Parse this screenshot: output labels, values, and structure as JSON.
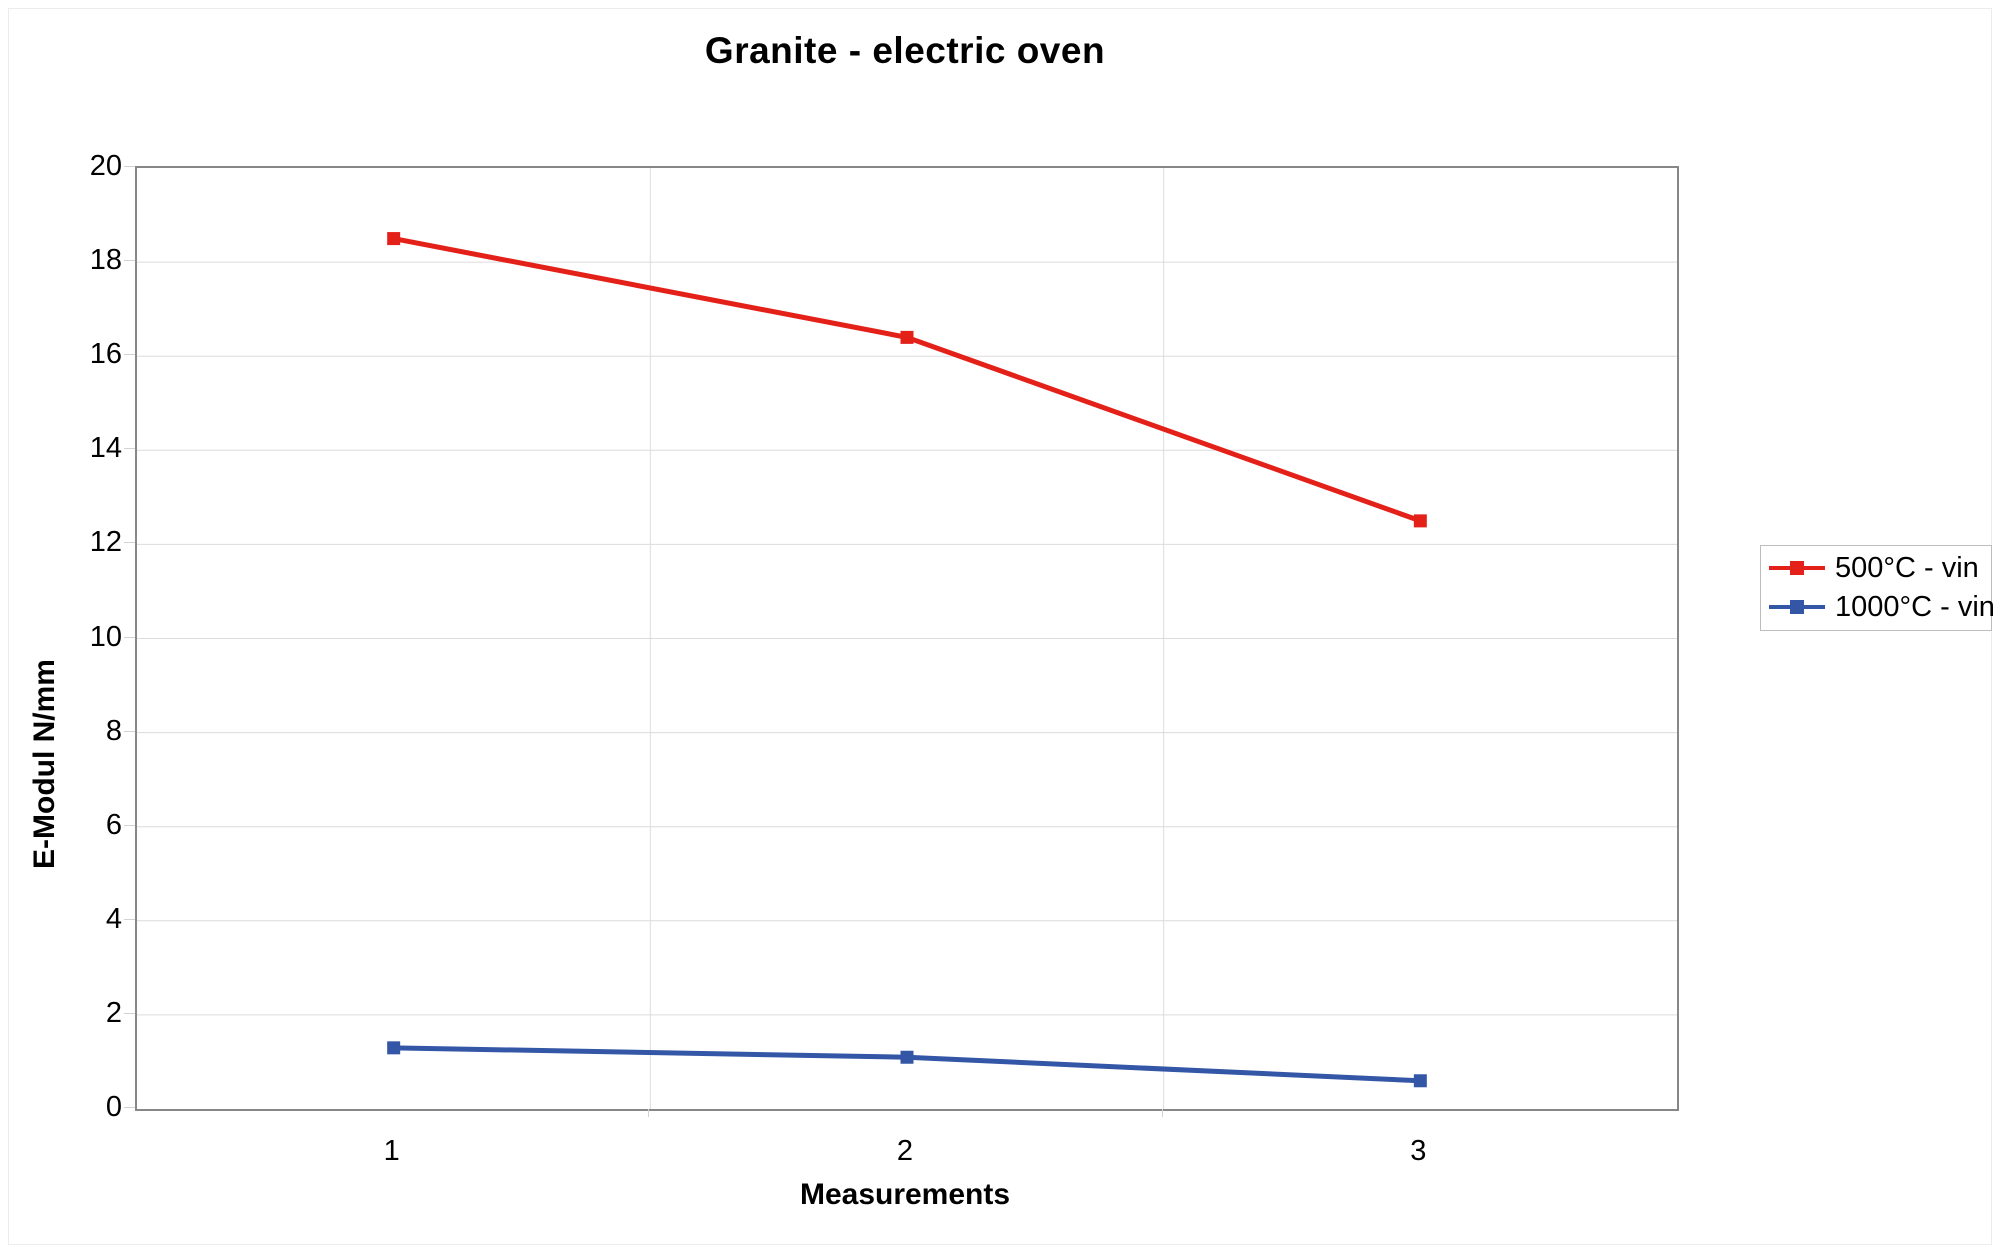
{
  "chart_data": {
    "type": "line",
    "title": "Granite - electric oven",
    "xlabel": "Measurements",
    "ylabel": "E-Modul N/mm",
    "categories": [
      "1",
      "2",
      "3"
    ],
    "series": [
      {
        "name": "500°C - vin",
        "color": "#e32119",
        "values": [
          18.5,
          16.4,
          12.5
        ]
      },
      {
        "name": "1000°C - vin",
        "color": "#3456a6",
        "values": [
          1.3,
          1.1,
          0.6
        ]
      }
    ],
    "ylim": [
      0,
      20
    ],
    "ytick_step": 2,
    "grid": true,
    "legend_position": "right",
    "marker": "square"
  },
  "colors": {
    "grid": "#dcdcdc",
    "axis_border": "#878787",
    "tick": "#d2d2d2",
    "legend_border": "#bdbdbd",
    "text": "#000000",
    "background": "#ffffff"
  }
}
